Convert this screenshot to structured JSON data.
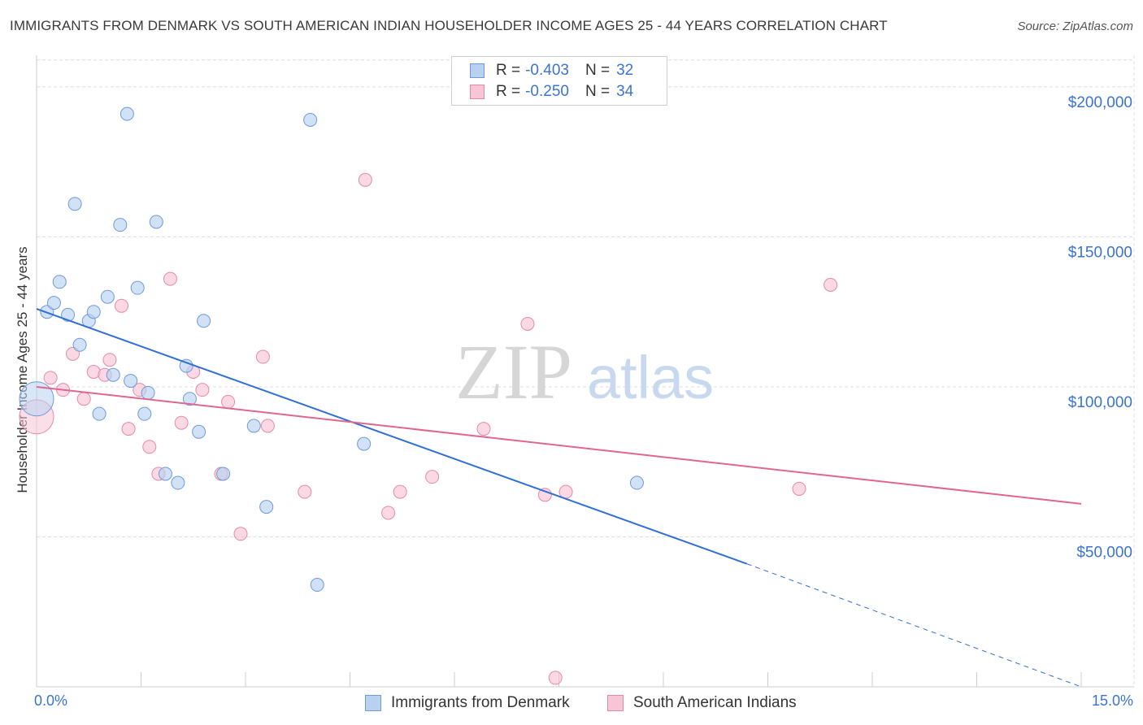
{
  "header": {
    "title": "IMMIGRANTS FROM DENMARK VS SOUTH AMERICAN INDIAN HOUSEHOLDER INCOME AGES 25 - 44 YEARS CORRELATION CHART",
    "source": "Source: ZipAtlas.com"
  },
  "watermark": {
    "zip": "ZIP",
    "atlas": "atlas"
  },
  "legend": {
    "rows": [
      {
        "r_label": "R =",
        "r_value": "-0.403",
        "n_label": "N =",
        "n_value": "32"
      },
      {
        "r_label": "R =",
        "r_value": "-0.250",
        "n_label": "N =",
        "n_value": "34"
      }
    ]
  },
  "colors": {
    "blue_fill": "#b9d1f1",
    "blue_stroke": "#6f9ad8",
    "blue_line": "#2f6fd6",
    "pink_fill": "#f7c5d5",
    "pink_stroke": "#e48aa8",
    "pink_line": "#e0668f",
    "grid": "#dddddd",
    "axis_text": "#3b74d0"
  },
  "chart_data": {
    "type": "scatter",
    "title": "IMMIGRANTS FROM DENMARK VS SOUTH AMERICAN INDIAN HOUSEHOLDER INCOME AGES 25 - 44 YEARS CORRELATION CHART",
    "xlabel": "",
    "ylabel": "Householder Income Ages 25 - 44 years",
    "xlim": [
      0,
      15
    ],
    "ylim": [
      0,
      210000
    ],
    "x_tick_labels": [
      "0.0%",
      "15.0%"
    ],
    "y_ticks": [
      {
        "value": 50000,
        "label": "$50,000"
      },
      {
        "value": 100000,
        "label": "$100,000"
      },
      {
        "value": 150000,
        "label": "$150,000"
      },
      {
        "value": 200000,
        "label": "$200,000"
      }
    ],
    "grid": true,
    "series": [
      {
        "name": "Immigrants from Denmark",
        "color": "blue",
        "points": [
          {
            "x": 0.0,
            "y": 96000,
            "big": true
          },
          {
            "x": 0.15,
            "y": 125000
          },
          {
            "x": 0.25,
            "y": 128000
          },
          {
            "x": 0.33,
            "y": 135000
          },
          {
            "x": 0.45,
            "y": 124000
          },
          {
            "x": 0.55,
            "y": 161000
          },
          {
            "x": 0.62,
            "y": 114000
          },
          {
            "x": 0.75,
            "y": 122000
          },
          {
            "x": 0.82,
            "y": 125000
          },
          {
            "x": 0.9,
            "y": 91000
          },
          {
            "x": 1.02,
            "y": 130000
          },
          {
            "x": 1.1,
            "y": 104000
          },
          {
            "x": 1.2,
            "y": 154000
          },
          {
            "x": 1.3,
            "y": 191000
          },
          {
            "x": 1.35,
            "y": 102000
          },
          {
            "x": 1.45,
            "y": 133000
          },
          {
            "x": 1.55,
            "y": 91000
          },
          {
            "x": 1.6,
            "y": 98000
          },
          {
            "x": 1.72,
            "y": 155000
          },
          {
            "x": 1.85,
            "y": 71000
          },
          {
            "x": 2.03,
            "y": 68000
          },
          {
            "x": 2.15,
            "y": 107000
          },
          {
            "x": 2.2,
            "y": 96000
          },
          {
            "x": 2.33,
            "y": 85000
          },
          {
            "x": 2.4,
            "y": 122000
          },
          {
            "x": 2.68,
            "y": 71000
          },
          {
            "x": 3.12,
            "y": 87000
          },
          {
            "x": 3.3,
            "y": 60000
          },
          {
            "x": 3.93,
            "y": 189000
          },
          {
            "x": 4.03,
            "y": 34000
          },
          {
            "x": 4.7,
            "y": 81000
          },
          {
            "x": 8.62,
            "y": 68000
          }
        ],
        "trend": {
          "x1": 0.0,
          "y1": 126000,
          "x2": 10.2,
          "y2": 41000,
          "dashed_to_x": 15.0,
          "dashed_to_y": 0
        }
      },
      {
        "name": "South American Indians",
        "color": "pink",
        "points": [
          {
            "x": 0.0,
            "y": 90000,
            "big": true
          },
          {
            "x": 0.2,
            "y": 103000
          },
          {
            "x": 0.38,
            "y": 99000
          },
          {
            "x": 0.52,
            "y": 111000
          },
          {
            "x": 0.68,
            "y": 96000
          },
          {
            "x": 0.82,
            "y": 105000
          },
          {
            "x": 0.98,
            "y": 104000
          },
          {
            "x": 1.05,
            "y": 109000
          },
          {
            "x": 1.22,
            "y": 127000
          },
          {
            "x": 1.32,
            "y": 86000
          },
          {
            "x": 1.48,
            "y": 99000
          },
          {
            "x": 1.62,
            "y": 80000
          },
          {
            "x": 1.75,
            "y": 71000
          },
          {
            "x": 1.92,
            "y": 136000
          },
          {
            "x": 2.08,
            "y": 88000
          },
          {
            "x": 2.25,
            "y": 105000
          },
          {
            "x": 2.38,
            "y": 99000
          },
          {
            "x": 2.65,
            "y": 71000
          },
          {
            "x": 2.75,
            "y": 95000
          },
          {
            "x": 2.93,
            "y": 51000
          },
          {
            "x": 3.25,
            "y": 110000
          },
          {
            "x": 3.32,
            "y": 87000
          },
          {
            "x": 3.85,
            "y": 65000
          },
          {
            "x": 4.72,
            "y": 169000
          },
          {
            "x": 5.05,
            "y": 58000
          },
          {
            "x": 5.22,
            "y": 65000
          },
          {
            "x": 5.68,
            "y": 70000
          },
          {
            "x": 6.42,
            "y": 86000
          },
          {
            "x": 7.05,
            "y": 121000
          },
          {
            "x": 7.3,
            "y": 64000
          },
          {
            "x": 7.45,
            "y": 3000
          },
          {
            "x": 7.6,
            "y": 65000
          },
          {
            "x": 10.95,
            "y": 66000
          },
          {
            "x": 11.4,
            "y": 134000
          }
        ],
        "trend": {
          "x1": 0.0,
          "y1": 100000,
          "x2": 15.0,
          "y2": 61000
        }
      }
    ]
  }
}
